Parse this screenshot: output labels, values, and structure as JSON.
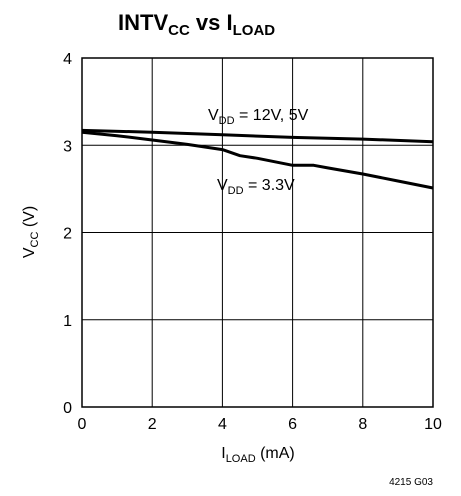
{
  "chart_data": {
    "type": "line",
    "title": {
      "main": "INTV",
      "sub1": "CC",
      "mid": " vs I",
      "sub2": "LOAD"
    },
    "xlabel": {
      "main": "I",
      "sub": "LOAD",
      "tail": " (mA)"
    },
    "ylabel": {
      "main": "V",
      "sub": "CC",
      "tail": " (V)"
    },
    "xlim": [
      0,
      10
    ],
    "ylim": [
      0,
      4
    ],
    "x_ticks": [
      "0",
      "2",
      "4",
      "6",
      "8",
      "10"
    ],
    "y_ticks": [
      "0",
      "1",
      "2",
      "3",
      "4"
    ],
    "grid": true,
    "series": [
      {
        "name": "VDD = 12V, 5V",
        "label": {
          "main": "V",
          "sub": "DD",
          "tail": " = 12V, 5V"
        },
        "x": [
          0,
          2,
          4,
          6,
          8,
          10
        ],
        "y": [
          3.17,
          3.15,
          3.12,
          3.09,
          3.07,
          3.04
        ]
      },
      {
        "name": "VDD = 3.3V",
        "label": {
          "main": "V",
          "sub": "DD",
          "tail": " = 3.3V"
        },
        "x": [
          0,
          1,
          2,
          3,
          4,
          4.5,
          5,
          6,
          6.6,
          7,
          8,
          9,
          10
        ],
        "y": [
          3.15,
          3.11,
          3.06,
          3.01,
          2.95,
          2.88,
          2.85,
          2.77,
          2.77,
          2.74,
          2.67,
          2.59,
          2.51
        ]
      }
    ]
  },
  "footnote": "4215 G03"
}
